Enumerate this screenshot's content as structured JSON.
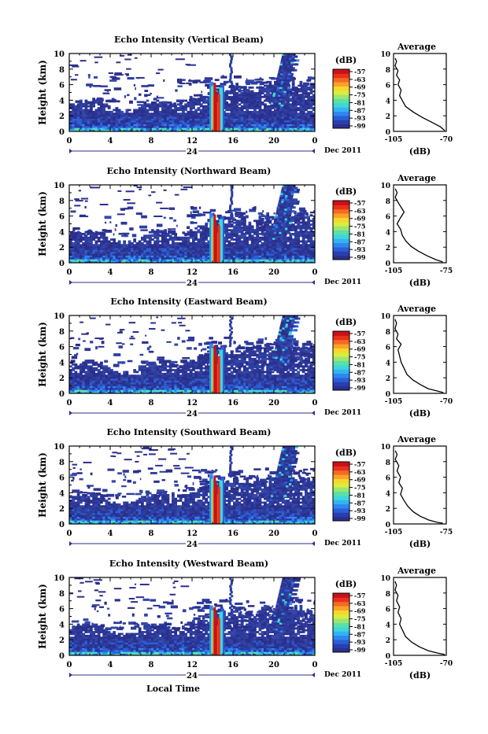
{
  "figure": {
    "month_label": "Dec 2011",
    "xlabel": "Local Time",
    "ylabel": "Height (km)",
    "colorbar_unit": "(dB)",
    "colorbar_ticks": [
      "-57",
      "-63",
      "-69",
      "-75",
      "-81",
      "-87",
      "-93",
      "-99"
    ],
    "colorbar_colors": [
      "#2b2f8c",
      "#283fb0",
      "#2a5fd6",
      "#2f86f0",
      "#33b3f3",
      "#3ed6d8",
      "#5be0a8",
      "#9ae66f",
      "#d9ec3f",
      "#f8d62b",
      "#f9a228",
      "#f56a22",
      "#e8301c",
      "#cc1018"
    ],
    "x_ticks": [
      "0",
      "4",
      "8",
      "12",
      "16",
      "20",
      "0"
    ],
    "day_label": "24",
    "y_ticks": [
      "0",
      "2",
      "4",
      "6",
      "8",
      "10"
    ],
    "avg_title": "Average",
    "avg_xlabel": "(dB)"
  },
  "chart_data": [
    {
      "type": "heatmap",
      "title": "Echo Intensity (Vertical Beam)",
      "xlabel": "",
      "ylabel": "Height (km)",
      "xlim": [
        0,
        24
      ],
      "ylim": [
        0,
        10
      ],
      "profile": {
        "type": "line",
        "title": "Average",
        "x_ticks": [
          "-105",
          "-70"
        ],
        "xlim": [
          -105,
          -70
        ],
        "ylim": [
          0,
          10
        ],
        "x": [
          -104,
          -103,
          -104,
          -102,
          -103,
          -101,
          -102,
          -100,
          -101,
          -99,
          -97,
          -92,
          -86,
          -80,
          -74,
          -71
        ],
        "y": [
          9.4,
          9.0,
          8.4,
          7.8,
          7.2,
          6.6,
          6.0,
          5.3,
          4.6,
          3.9,
          3.2,
          2.5,
          1.8,
          1.2,
          0.6,
          0.1
        ]
      }
    },
    {
      "type": "heatmap",
      "title": "Echo Intensity (Northward Beam)",
      "xlabel": "",
      "ylabel": "Height (km)",
      "xlim": [
        0,
        24
      ],
      "ylim": [
        0,
        10
      ],
      "profile": {
        "type": "line",
        "title": "Average",
        "x_ticks": [
          "-105",
          "-75"
        ],
        "xlim": [
          -105,
          -75
        ],
        "ylim": [
          0,
          10
        ],
        "x": [
          -104,
          -103,
          -104,
          -102,
          -99,
          -101,
          -103,
          -101,
          -100,
          -98,
          -95,
          -91,
          -86,
          -81,
          -77
        ],
        "y": [
          9.5,
          9.0,
          8.4,
          7.6,
          6.5,
          5.8,
          5.0,
          4.3,
          3.5,
          2.8,
          2.1,
          1.5,
          0.9,
          0.4,
          0.1
        ]
      }
    },
    {
      "type": "heatmap",
      "title": "Echo Intensity (Eastward Beam)",
      "xlabel": "",
      "ylabel": "Height (km)",
      "xlim": [
        0,
        24
      ],
      "ylim": [
        0,
        10
      ],
      "profile": {
        "type": "line",
        "title": "Average",
        "x_ticks": [
          "-105",
          "-70"
        ],
        "xlim": [
          -105,
          -70
        ],
        "ylim": [
          0,
          10
        ],
        "x": [
          -104,
          -103,
          -104,
          -102,
          -103,
          -100,
          -102,
          -101,
          -100,
          -98,
          -96,
          -92,
          -87,
          -82,
          -76,
          -72
        ],
        "y": [
          9.5,
          9.0,
          8.3,
          7.6,
          7.0,
          6.3,
          5.6,
          4.8,
          4.0,
          3.2,
          2.4,
          1.7,
          1.1,
          0.6,
          0.3,
          0.1
        ]
      }
    },
    {
      "type": "heatmap",
      "title": "Echo Intensity (Southward Beam)",
      "xlabel": "",
      "ylabel": "Height (km)",
      "xlim": [
        0,
        24
      ],
      "ylim": [
        0,
        10
      ],
      "profile": {
        "type": "line",
        "title": "Average",
        "x_ticks": [
          "-105",
          "-75"
        ],
        "xlim": [
          -105,
          -75
        ],
        "ylim": [
          0,
          10
        ],
        "x": [
          -104,
          -103,
          -104,
          -102,
          -103,
          -101,
          -102,
          -100,
          -101,
          -99,
          -97,
          -94,
          -90,
          -85,
          -80,
          -77
        ],
        "y": [
          9.4,
          8.9,
          8.3,
          7.5,
          6.8,
          6.0,
          5.3,
          4.6,
          3.8,
          3.0,
          2.3,
          1.6,
          1.0,
          0.5,
          0.2,
          0.1
        ]
      }
    },
    {
      "type": "heatmap",
      "title": "Echo Intensity (Westward Beam)",
      "xlabel": "Local Time",
      "ylabel": "Height (km)",
      "xlim": [
        0,
        24
      ],
      "ylim": [
        0,
        10
      ],
      "profile": {
        "type": "line",
        "title": "Average",
        "x_ticks": [
          "-105",
          "-70"
        ],
        "xlim": [
          -105,
          -70
        ],
        "ylim": [
          0,
          10
        ],
        "x": [
          -104,
          -103,
          -104,
          -102,
          -103,
          -101,
          -102,
          -100,
          -101,
          -99,
          -97,
          -93,
          -88,
          -82,
          -76,
          -71
        ],
        "y": [
          9.5,
          9.0,
          8.4,
          7.7,
          7.0,
          6.2,
          5.5,
          4.7,
          4.0,
          3.2,
          2.4,
          1.7,
          1.1,
          0.6,
          0.3,
          0.1
        ]
      }
    }
  ]
}
